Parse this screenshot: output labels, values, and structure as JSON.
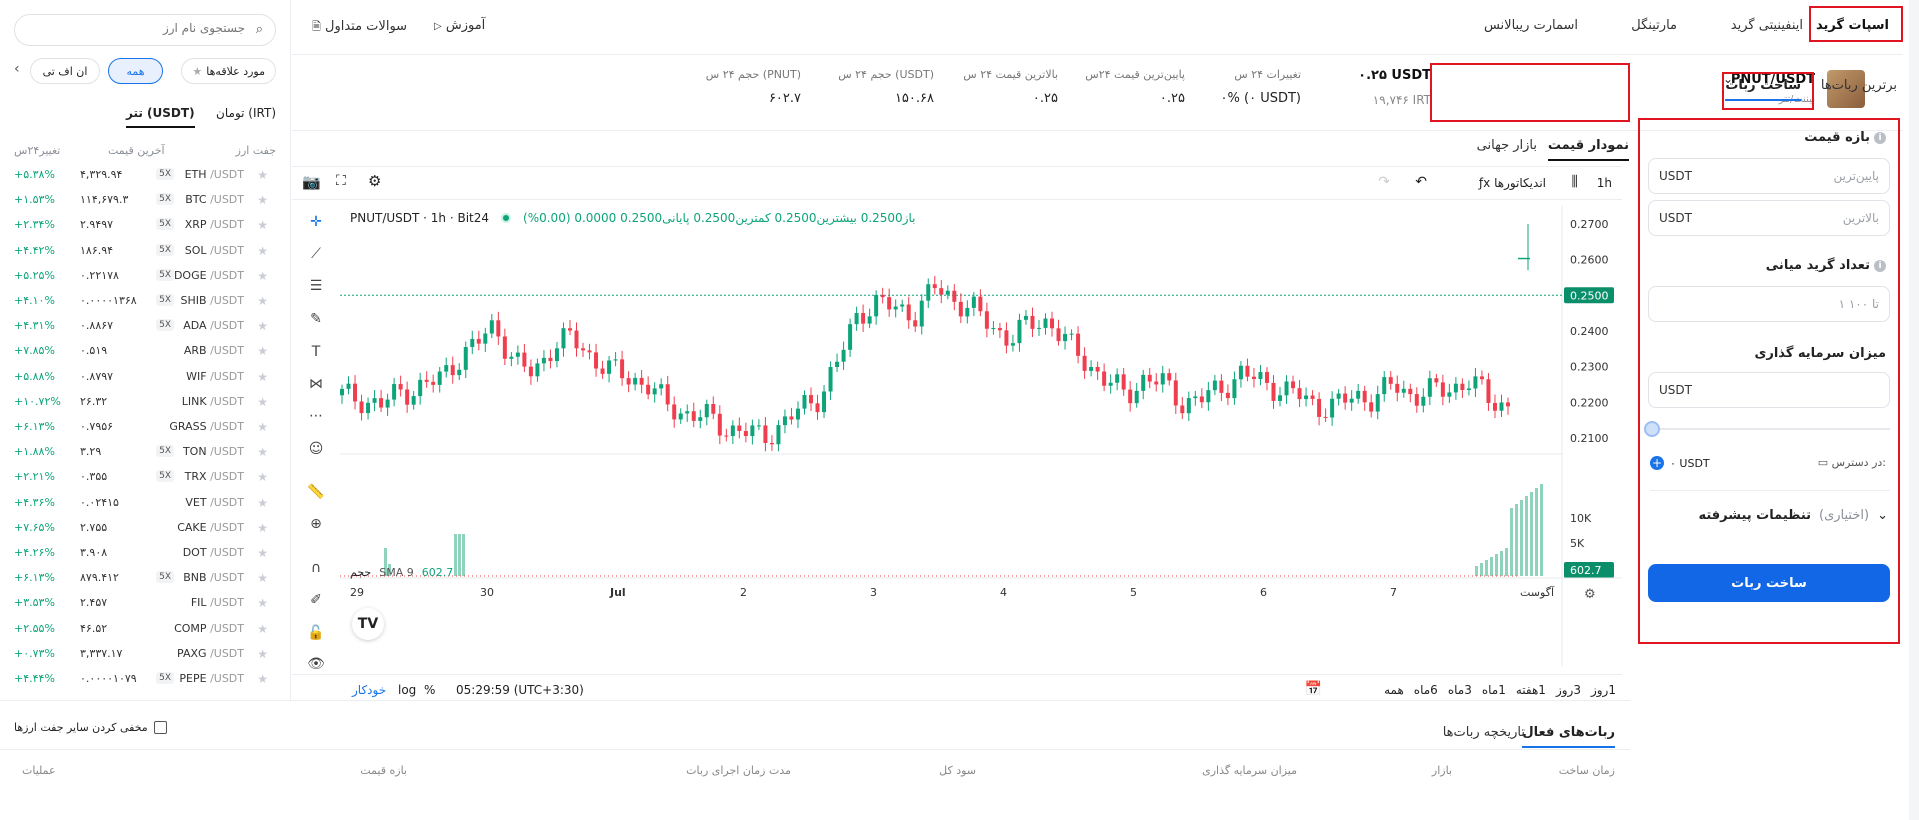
{
  "top_tabs": {
    "spot_grid": "اسپات گرید",
    "infinity_grid": "اینفینیتی گرید",
    "martingale": "مارتینگل",
    "smart_rebalance": "اسمارت ریبالانس",
    "tutorial": "آموزش",
    "faq": "سوالات متداول"
  },
  "search": {
    "placeholder": "جستجوی نام ارز"
  },
  "filters": {
    "favorites": "مورد علاقه‌ها",
    "all": "همه",
    "etf": "ان اف تی"
  },
  "quote_tabs": {
    "irt": "تومان (IRT)",
    "usdt": "تتر (USDT)"
  },
  "list_headers": {
    "pair": "جفت ارز",
    "last_price": "آخرین قیمت",
    "change": "تغییر۲۴س"
  },
  "markets": [
    {
      "base": "ETH",
      "quote": "/USDT",
      "lev": "5X",
      "price": "۴,۳۲۹.۹۴",
      "change": "+۵.۳۸%"
    },
    {
      "base": "BTC",
      "quote": "/USDT",
      "lev": "5X",
      "price": "۱۱۴,۶۷۹.۳",
      "change": "+۱.۵۳%"
    },
    {
      "base": "XRP",
      "quote": "/USDT",
      "lev": "5X",
      "price": "۲.۹۴۹۷",
      "change": "+۲.۳۴%"
    },
    {
      "base": "SOL",
      "quote": "/USDT",
      "lev": "5X",
      "price": "۱۸۶.۹۴",
      "change": "+۴.۴۲%"
    },
    {
      "base": "DOGE",
      "quote": "/USDT",
      "lev": "5X",
      "price": "۰.۲۲۱۷۸",
      "change": "+۵.۲۵%"
    },
    {
      "base": "SHIB",
      "quote": "/USDT",
      "lev": "5X",
      "price": "۰.۰۰۰۰۱۳۶۸",
      "change": "+۴.۱۰%"
    },
    {
      "base": "ADA",
      "quote": "/USDT",
      "lev": "5X",
      "price": "۰.۸۸۶۷",
      "change": "+۴.۳۱%"
    },
    {
      "base": "ARB",
      "quote": "/USDT",
      "lev": "",
      "price": "۰.۵۱۹",
      "change": "+۷.۸۵%"
    },
    {
      "base": "WIF",
      "quote": "/USDT",
      "lev": "",
      "price": "۰.۸۷۹۷",
      "change": "+۵.۸۸%"
    },
    {
      "base": "LINK",
      "quote": "/USDT",
      "lev": "",
      "price": "۲۶.۳۲",
      "change": "+۱۰.۷۲%"
    },
    {
      "base": "GRASS",
      "quote": "/USDT",
      "lev": "",
      "price": "۰.۷۹۵۶",
      "change": "+۶.۱۳%"
    },
    {
      "base": "TON",
      "quote": "/USDT",
      "lev": "5X",
      "price": "۳.۲۹",
      "change": "+۱.۸۸%"
    },
    {
      "base": "TRX",
      "quote": "/USDT",
      "lev": "5X",
      "price": "۰.۳۵۵",
      "change": "+۲.۲۱%"
    },
    {
      "base": "VET",
      "quote": "/USDT",
      "lev": "",
      "price": "۰.۰۲۴۱۵",
      "change": "+۴.۳۶%"
    },
    {
      "base": "CAKE",
      "quote": "/USDT",
      "lev": "",
      "price": "۲.۷۵۵",
      "change": "+۷.۶۵%"
    },
    {
      "base": "DOT",
      "quote": "/USDT",
      "lev": "",
      "price": "۳.۹۰۸",
      "change": "+۴.۲۶%"
    },
    {
      "base": "BNB",
      "quote": "/USDT",
      "lev": "5X",
      "price": "۸۷۹.۴۱۲",
      "change": "+۶.۱۳%"
    },
    {
      "base": "FIL",
      "quote": "/USDT",
      "lev": "",
      "price": "۲.۴۵۷",
      "change": "+۳.۵۳%"
    },
    {
      "base": "COMP",
      "quote": "/USDT",
      "lev": "",
      "price": "۴۶.۵۲",
      "change": "+۲.۵۵%"
    },
    {
      "base": "PAXG",
      "quote": "/USDT",
      "lev": "",
      "price": "۳,۳۳۷.۱۷",
      "change": "+۰.۷۳%"
    },
    {
      "base": "PEPE",
      "quote": "/USDT",
      "lev": "5X",
      "price": "۰.۰۰۰۰۱۰۷۹",
      "change": "+۴.۴۴%"
    }
  ],
  "symbol": {
    "pair": "PNUT/USDT",
    "exchange": "بیننت/تتر"
  },
  "ticker": {
    "price_usdt": "۰.۲۵ USDT",
    "price_irt": "۱۹,۷۴۶ IRT",
    "change_label": "تغییرات ۲۴ س",
    "change_value": "۰% (۰ USDT)",
    "low_label": "پایین‌ترین قیمت ۲۴س",
    "low_value": "۰.۲۵",
    "high_label": "بالاترین قیمت ۲۴ س",
    "high_value": "۰.۲۵",
    "vol_usdt_label": "حجم ۲۴ س (USDT)",
    "vol_usdt_value": "۱۵۰.۶۸",
    "vol_pnut_label": "حجم ۲۴ س (PNUT)",
    "vol_pnut_value": "۶۰۲.۷"
  },
  "chart_tabs": {
    "price_chart": "نمودار قیمت",
    "global_market": "بازار جهانی"
  },
  "chart_toolbar": {
    "interval": "1h",
    "indicators": "اندیکاتورها"
  },
  "chart_legend": {
    "title": "PNUT/USDT · 1h · Bit24",
    "ohlc": "باز0.2500 بیشترین0.2500 کمترین0.2500 پایانی0.2500 0.0000 (0.00%)",
    "vol_label": "حجم",
    "sma": "SMA 9",
    "sma_value": "602.7"
  },
  "chart_data": {
    "type": "candlestick",
    "price_axis": [
      "0.2700",
      "0.2600",
      "0.2500",
      "0.2400",
      "0.2300",
      "0.2200",
      "0.2100"
    ],
    "current_price": "0.2500",
    "volume_axis": [
      "10K",
      "5K"
    ],
    "current_volume": "602.7",
    "x_ticks": [
      "29",
      "30",
      "Jul",
      "2",
      "3",
      "4",
      "5",
      "6",
      "7",
      "آگوست"
    ],
    "ylim": [
      0.205,
      0.275
    ]
  },
  "ranges": [
    "1روز",
    "3روز",
    "1هفته",
    "1ماه",
    "3ماه",
    "6ماه",
    "همه"
  ],
  "chart_bottom": {
    "time": "05:29:59 (UTC+3:30)",
    "percent": "%",
    "log": "log",
    "auto": "خودکار"
  },
  "bot_tabs": {
    "top_bots": "برترین ربات‌ها",
    "create_bot": "ساخت ربات"
  },
  "form": {
    "price_range": "بازه قیمت",
    "lowest_ph": "پایین‌ترین",
    "highest_ph": "بالاترین",
    "unit": "USDT",
    "grid_count": "تعداد گرید میانی",
    "grid_ph": "۱ تا ۱۰۰",
    "investment": "میزان سرمایه گذاری",
    "available_label": "در دسترس:",
    "available_value": "۰ USDT",
    "advanced": "تنظیمات پیشرفته",
    "optional": "(اختیاری)",
    "submit": "ساخت ربات"
  },
  "bottom_panel": {
    "active_bots": "ربات‌های فعال",
    "history": "تاریخچه ربات‌ها",
    "hide_others": "مخفی کردن سایر جفت ارزها",
    "cols": [
      "زمان ساخت",
      "بازار",
      "میزان سرمایه گذاری",
      "سود کل",
      "مدت زمان اجرای ربات",
      "بازه قیمت",
      "عملیات"
    ]
  }
}
